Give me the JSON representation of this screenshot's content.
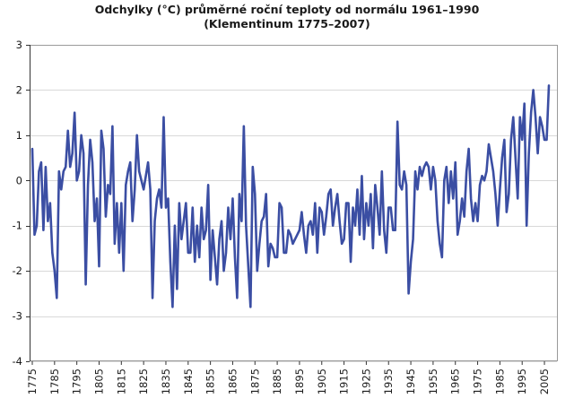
{
  "chart_data": {
    "type": "line",
    "title_line1": "Odchylky (°C) průměrné roční teploty od normálu 1961–1990",
    "title_line2": "(Klementinum 1775–2007)",
    "xlabel": "",
    "ylabel": "",
    "ylim": [
      -4,
      3
    ],
    "xlim": [
      1775,
      2007
    ],
    "y_ticks": [
      3,
      2,
      1,
      0,
      -1,
      -2,
      -3,
      -4
    ],
    "x_ticks": [
      1775,
      1785,
      1795,
      1805,
      1815,
      1825,
      1835,
      1845,
      1855,
      1865,
      1875,
      1885,
      1895,
      1905,
      1915,
      1925,
      1935,
      1945,
      1955,
      1965,
      1975,
      1985,
      1995,
      2005
    ],
    "grid": true,
    "line_color": "#3b4ea3",
    "series": [
      {
        "x": [
          1775,
          1776,
          1777,
          1778,
          1779,
          1780,
          1781,
          1782,
          1783,
          1784,
          1785,
          1786,
          1787,
          1788,
          1789,
          1790,
          1791,
          1792,
          1793,
          1794,
          1795,
          1796,
          1797,
          1798,
          1799,
          1800,
          1801,
          1802,
          1803,
          1804,
          1805,
          1806,
          1807,
          1808,
          1809,
          1810,
          1811,
          1812,
          1813,
          1814,
          1815,
          1816,
          1817,
          1818,
          1819,
          1820,
          1821,
          1822,
          1823,
          1824,
          1825,
          1826,
          1827,
          1828,
          1829,
          1830,
          1831,
          1832,
          1833,
          1834,
          1835,
          1836,
          1837,
          1838,
          1839,
          1840,
          1841,
          1842,
          1843,
          1844,
          1845,
          1846,
          1847,
          1848,
          1849,
          1850,
          1851,
          1852,
          1853,
          1854,
          1855,
          1856,
          1857,
          1858,
          1859,
          1860,
          1861,
          1862,
          1863,
          1864,
          1865,
          1866,
          1867,
          1868,
          1869,
          1870,
          1871,
          1872,
          1873,
          1874,
          1875,
          1876,
          1877,
          1878,
          1879,
          1880,
          1881,
          1882,
          1883,
          1884,
          1885,
          1886,
          1887,
          1888,
          1889,
          1890,
          1891,
          1892,
          1893,
          1894,
          1895,
          1896,
          1897,
          1898,
          1899,
          1900,
          1901,
          1902,
          1903,
          1904,
          1905,
          1906,
          1907,
          1908,
          1909,
          1910,
          1911,
          1912,
          1913,
          1914,
          1915,
          1916,
          1917,
          1918,
          1919,
          1920,
          1921,
          1922,
          1923,
          1924,
          1925,
          1926,
          1927,
          1928,
          1929,
          1930,
          1931,
          1932,
          1933,
          1934,
          1935,
          1936,
          1937,
          1938,
          1939,
          1940,
          1941,
          1942,
          1943,
          1944,
          1945,
          1946,
          1947,
          1948,
          1949,
          1950,
          1951,
          1952,
          1953,
          1954,
          1955,
          1956,
          1957,
          1958,
          1959,
          1960,
          1961,
          1962,
          1963,
          1964,
          1965,
          1966,
          1967,
          1968,
          1969,
          1970,
          1971,
          1972,
          1973,
          1974,
          1975,
          1976,
          1977,
          1978,
          1979,
          1980,
          1981,
          1982,
          1983,
          1984,
          1985,
          1986,
          1987,
          1988,
          1989,
          1990,
          1991,
          1992,
          1993,
          1994,
          1995,
          1996,
          1997,
          1998,
          1999,
          2000,
          2001,
          2002,
          2003,
          2004,
          2005,
          2006,
          2007
        ],
        "y": [
          0.7,
          -1.2,
          -1.0,
          0.2,
          0.4,
          -1.1,
          0.3,
          -0.9,
          -0.5,
          -1.6,
          -2.0,
          -2.6,
          0.2,
          -0.2,
          0.2,
          0.3,
          1.1,
          0.3,
          0.6,
          1.5,
          0.0,
          0.2,
          1.0,
          0.6,
          -2.3,
          -0.1,
          0.9,
          0.4,
          -0.9,
          -0.4,
          -1.9,
          1.1,
          0.7,
          -0.8,
          -0.1,
          -0.3,
          1.2,
          -1.4,
          -0.5,
          -1.6,
          -0.5,
          -2.0,
          -0.1,
          0.2,
          0.4,
          -0.9,
          -0.2,
          1.0,
          0.2,
          0.0,
          -0.2,
          0.1,
          0.4,
          -0.2,
          -2.6,
          -0.9,
          -0.4,
          -0.2,
          -0.6,
          1.4,
          -0.6,
          -0.4,
          -1.8,
          -2.8,
          -1.0,
          -2.4,
          -0.5,
          -1.3,
          -0.9,
          -0.5,
          -1.6,
          -1.6,
          -0.6,
          -1.8,
          -1.0,
          -1.7,
          -0.6,
          -1.3,
          -1.1,
          -0.1,
          -2.2,
          -1.1,
          -1.7,
          -2.3,
          -1.3,
          -0.9,
          -2.0,
          -1.6,
          -0.6,
          -1.3,
          -0.4,
          -1.7,
          -2.6,
          -0.3,
          -0.9,
          1.2,
          -1.0,
          -1.9,
          -2.8,
          0.3,
          -0.3,
          -2.0,
          -1.4,
          -0.9,
          -0.8,
          -0.3,
          -1.9,
          -1.4,
          -1.5,
          -1.7,
          -1.7,
          -0.5,
          -0.6,
          -1.6,
          -1.6,
          -1.1,
          -1.2,
          -1.4,
          -1.3,
          -1.2,
          -1.1,
          -0.7,
          -1.2,
          -1.6,
          -1.0,
          -0.9,
          -1.2,
          -0.5,
          -1.6,
          -0.6,
          -0.7,
          -1.2,
          -0.8,
          -0.3,
          -0.2,
          -1.0,
          -0.6,
          -0.3,
          -0.9,
          -1.4,
          -1.3,
          -0.5,
          -0.5,
          -1.8,
          -0.6,
          -1.0,
          -0.2,
          -1.2,
          0.1,
          -1.3,
          -0.5,
          -1.0,
          -0.3,
          -1.5,
          -0.1,
          -0.6,
          -1.2,
          0.2,
          -1.1,
          -1.6,
          -0.6,
          -0.6,
          -1.1,
          -1.1,
          1.3,
          -0.1,
          -0.2,
          0.2,
          -0.1,
          -2.5,
          -1.8,
          -1.3,
          0.2,
          -0.2,
          0.3,
          0.1,
          0.3,
          0.4,
          0.3,
          -0.2,
          0.3,
          0.0,
          -0.9,
          -1.4,
          -1.7,
          0.0,
          0.3,
          -0.5,
          0.2,
          -0.4,
          0.4,
          -1.2,
          -0.9,
          -0.4,
          -0.8,
          0.2,
          0.7,
          -0.4,
          -0.9,
          -0.5,
          -0.9,
          -0.1,
          0.1,
          0.0,
          0.2,
          0.8,
          0.5,
          0.2,
          -0.3,
          -1.0,
          -0.2,
          0.5,
          0.9,
          -0.7,
          -0.3,
          0.9,
          1.4,
          0.5,
          -0.4,
          1.4,
          0.9,
          1.7,
          -1.0,
          0.6,
          1.5,
          2.0,
          1.4,
          0.6,
          1.4,
          1.2,
          0.9,
          0.9,
          2.1
        ]
      }
    ]
  }
}
